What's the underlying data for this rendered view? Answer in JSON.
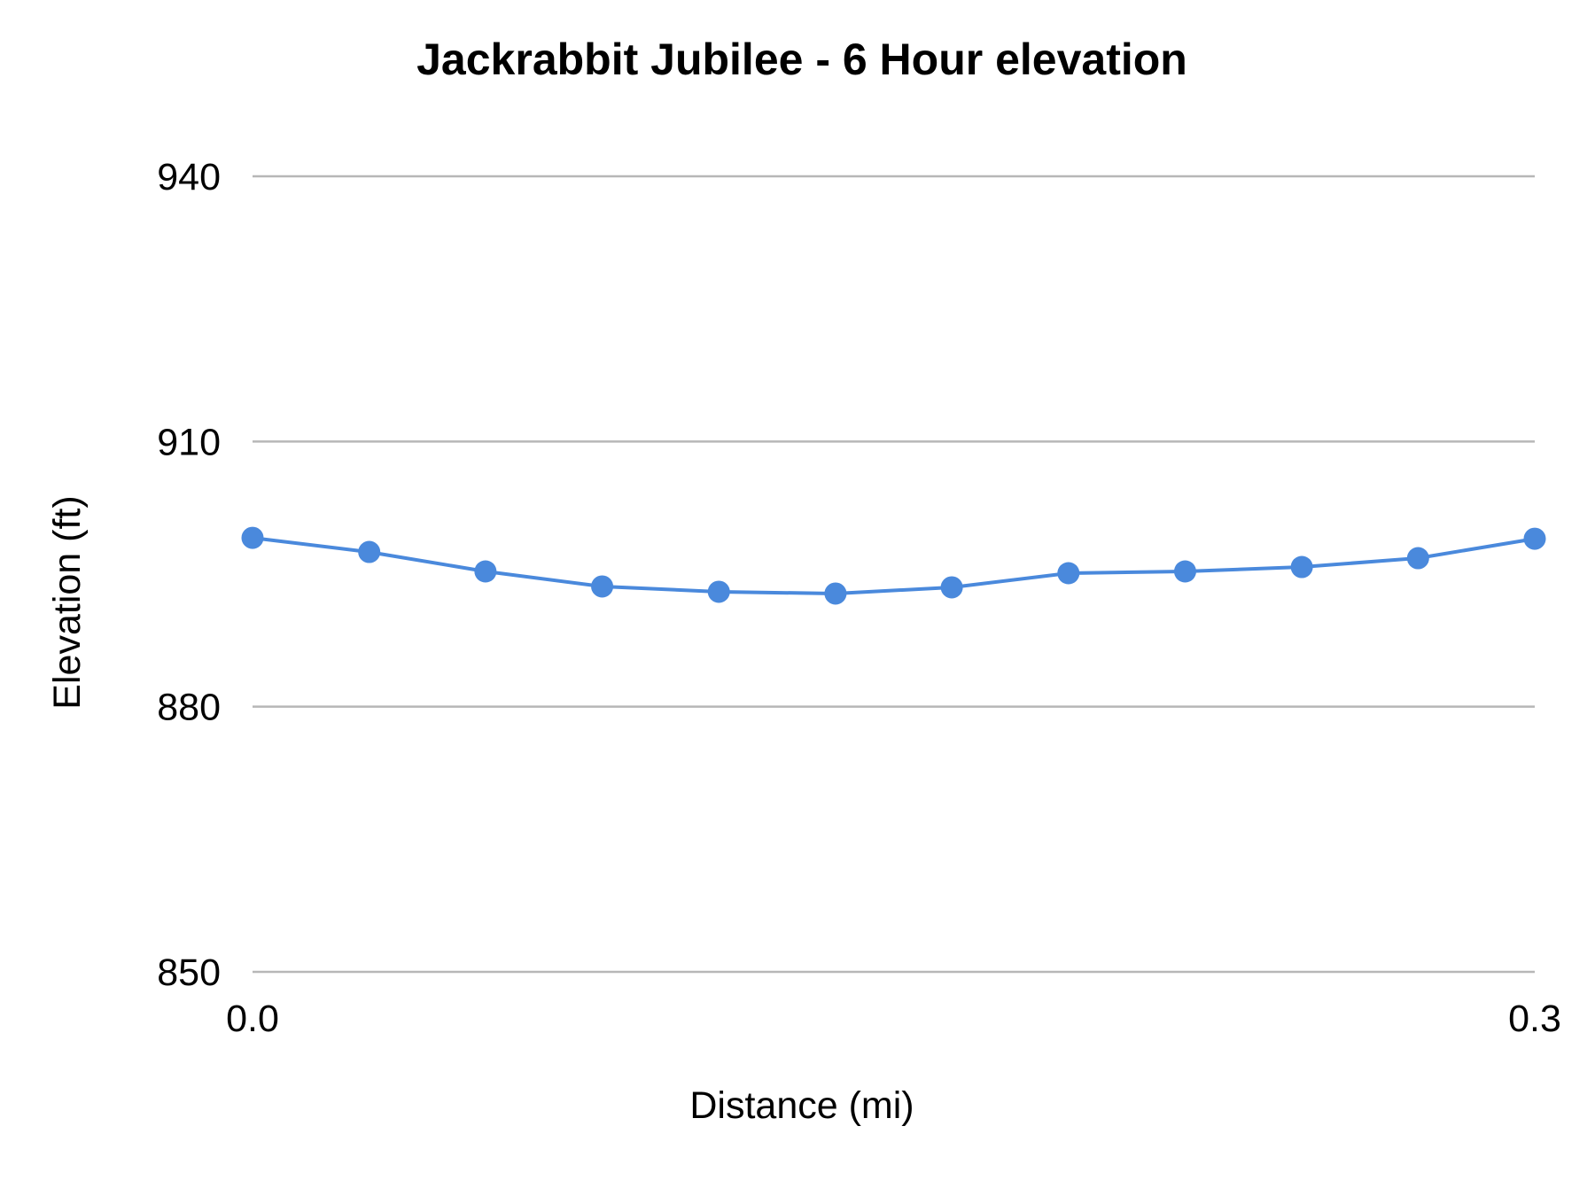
{
  "chart_data": {
    "type": "line",
    "title": "Jackrabbit Jubilee - 6 Hour elevation",
    "xlabel": "Distance (mi)",
    "ylabel": "Elevation (ft)",
    "xlim": [
      0.0,
      0.3
    ],
    "ylim": [
      850,
      940
    ],
    "yticks": [
      940,
      910,
      880,
      850
    ],
    "xtick_labels": [
      "0.0",
      "0.3"
    ],
    "grid": true,
    "legend": "none",
    "series": [
      {
        "color": "#4a89dc",
        "x": [
          0.0,
          0.0273,
          0.0545,
          0.0818,
          0.1091,
          0.1364,
          0.1636,
          0.1909,
          0.2182,
          0.2455,
          0.2727,
          0.3
        ],
        "y": [
          899.1,
          897.5,
          895.3,
          893.6,
          893.0,
          892.8,
          893.5,
          895.1,
          895.3,
          895.8,
          896.8,
          899.0
        ]
      }
    ]
  }
}
